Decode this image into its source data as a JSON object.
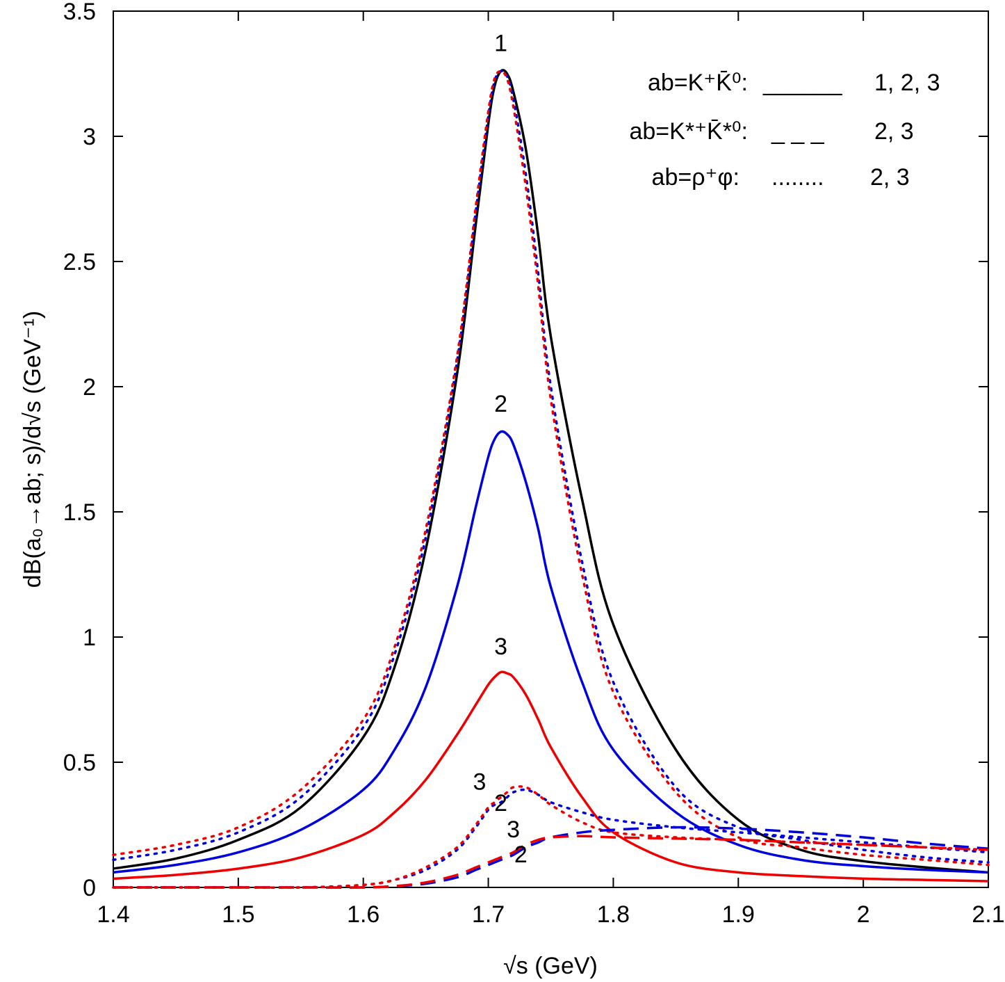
{
  "chart_data": {
    "type": "line",
    "xlabel": "√s   (GeV)",
    "ylabel": "dB(a₀→ab; s)/d√s   (GeV⁻¹)",
    "xlim": [
      1.4,
      2.1
    ],
    "ylim": [
      0,
      3.5
    ],
    "x_ticks": [
      "1.4",
      "1.5",
      "1.6",
      "1.7",
      "1.8",
      "1.9",
      "2",
      "2.1"
    ],
    "y_ticks": [
      "0",
      "0.5",
      "1",
      "1.5",
      "2",
      "2.5",
      "3",
      "3.5"
    ],
    "grid": false,
    "legend": {
      "position": "top-right",
      "entries": [
        {
          "label": "ab=K⁺K̄⁰:",
          "style": "solid",
          "sample": "______",
          "curves": "1, 2, 3"
        },
        {
          "label": "ab=K*⁺K̄*⁰:",
          "style": "dashed",
          "sample": "_ _ _",
          "curves": "2, 3"
        },
        {
          "label": "ab=ρ⁺φ:",
          "style": "dotted",
          "sample": "........",
          "curves": "2, 3"
        }
      ]
    },
    "colors": {
      "curve1": "#000000",
      "curve2": "#0000dd",
      "curve3": "#ee0000"
    },
    "x": [
      1.4,
      1.45,
      1.5,
      1.55,
      1.6,
      1.625,
      1.65,
      1.675,
      1.69,
      1.7,
      1.705,
      1.71,
      1.715,
      1.72,
      1.73,
      1.74,
      1.75,
      1.775,
      1.8,
      1.85,
      1.9,
      1.95,
      2.0,
      2.05,
      2.1
    ],
    "series": [
      {
        "label": "1",
        "ab": "K⁺K̄⁰",
        "style": "solid",
        "color": "#000000",
        "values": [
          0.075,
          0.115,
          0.19,
          0.32,
          0.6,
          0.88,
          1.35,
          2.05,
          2.65,
          3.05,
          3.2,
          3.26,
          3.25,
          3.18,
          2.95,
          2.6,
          2.2,
          1.55,
          1.05,
          0.55,
          0.27,
          0.15,
          0.105,
          0.08,
          0.06
        ]
      },
      {
        "label": "2",
        "ab": "K⁺K̄⁰",
        "style": "solid",
        "color": "#0000dd",
        "values": [
          0.06,
          0.09,
          0.14,
          0.23,
          0.39,
          0.55,
          0.8,
          1.2,
          1.52,
          1.72,
          1.79,
          1.82,
          1.81,
          1.77,
          1.62,
          1.43,
          1.2,
          0.82,
          0.55,
          0.3,
          0.17,
          0.11,
          0.085,
          0.07,
          0.06
        ]
      },
      {
        "label": "3",
        "ab": "K⁺K̄⁰",
        "style": "solid",
        "color": "#ee0000",
        "values": [
          0.035,
          0.05,
          0.075,
          0.12,
          0.21,
          0.3,
          0.43,
          0.61,
          0.73,
          0.81,
          0.84,
          0.86,
          0.855,
          0.84,
          0.77,
          0.67,
          0.56,
          0.36,
          0.22,
          0.1,
          0.06,
          0.045,
          0.035,
          0.03,
          0.025
        ]
      },
      {
        "label": "2",
        "ab": "ρ⁺φ",
        "style": "dotted",
        "color": "#0000dd",
        "values": [
          0.11,
          0.15,
          0.22,
          0.36,
          0.64,
          0.93,
          1.4,
          2.1,
          2.7,
          3.08,
          3.22,
          3.26,
          3.24,
          3.15,
          2.85,
          2.45,
          2.0,
          1.3,
          0.82,
          0.4,
          0.24,
          0.19,
          0.15,
          0.12,
          0.1
        ]
      },
      {
        "label": "3",
        "ab": "ρ⁺φ",
        "style": "dotted",
        "color": "#ee0000",
        "values": [
          0.13,
          0.17,
          0.24,
          0.39,
          0.67,
          0.96,
          1.43,
          2.12,
          2.72,
          3.1,
          3.23,
          3.26,
          3.23,
          3.12,
          2.8,
          2.4,
          1.95,
          1.25,
          0.78,
          0.38,
          0.2,
          0.16,
          0.13,
          0.11,
          0.09
        ]
      },
      {
        "label": "2",
        "ab": "ρ⁺φ threshold",
        "style": "dotted",
        "color": "#0000dd",
        "values": [
          0,
          0,
          0,
          0,
          0.01,
          0.03,
          0.07,
          0.15,
          0.24,
          0.31,
          0.33,
          0.34,
          0.36,
          0.38,
          0.39,
          0.37,
          0.34,
          0.3,
          0.27,
          0.24,
          0.22,
          0.2,
          0.18,
          0.16,
          0.14
        ]
      },
      {
        "label": "3",
        "ab": "ρ⁺φ threshold",
        "style": "dotted",
        "color": "#ee0000",
        "values": [
          0,
          0,
          0,
          0,
          0.01,
          0.03,
          0.08,
          0.16,
          0.25,
          0.32,
          0.34,
          0.36,
          0.38,
          0.4,
          0.4,
          0.37,
          0.33,
          0.26,
          0.22,
          0.2,
          0.19,
          0.18,
          0.17,
          0.16,
          0.15
        ]
      },
      {
        "label": "2",
        "ab": "K*⁺K̄*⁰",
        "style": "dashed",
        "color": "#0000dd",
        "values": [
          0,
          0,
          0,
          0,
          0,
          0.005,
          0.015,
          0.04,
          0.07,
          0.09,
          0.1,
          0.11,
          0.12,
          0.13,
          0.16,
          0.18,
          0.2,
          0.22,
          0.23,
          0.24,
          0.235,
          0.22,
          0.2,
          0.175,
          0.155
        ]
      },
      {
        "label": "3",
        "ab": "K*⁺K̄*⁰",
        "style": "dashed",
        "color": "#ee0000",
        "values": [
          0,
          0,
          0,
          0,
          0,
          0.005,
          0.02,
          0.05,
          0.08,
          0.1,
          0.11,
          0.12,
          0.13,
          0.14,
          0.17,
          0.19,
          0.2,
          0.205,
          0.2,
          0.195,
          0.19,
          0.18,
          0.17,
          0.16,
          0.15
        ]
      }
    ],
    "annotations": [
      {
        "text": "1",
        "x": 1.71,
        "y": 3.34
      },
      {
        "text": "2",
        "x": 1.71,
        "y": 1.9
      },
      {
        "text": "3",
        "x": 1.71,
        "y": 0.93
      },
      {
        "text": "3",
        "x": 1.693,
        "y": 0.39
      },
      {
        "text": "2",
        "x": 1.71,
        "y": 0.305
      },
      {
        "text": "3",
        "x": 1.72,
        "y": 0.2
      },
      {
        "text": "2",
        "x": 1.726,
        "y": 0.1
      }
    ]
  }
}
